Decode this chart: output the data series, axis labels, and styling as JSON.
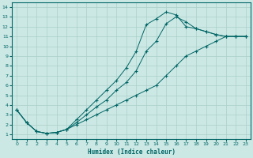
{
  "background_color": "#cce8e4",
  "line_color": "#006666",
  "grid_color": "#aacfca",
  "xlabel": "Humidex (Indice chaleur)",
  "xlim": [
    -0.5,
    23.5
  ],
  "ylim": [
    0.5,
    14.5
  ],
  "xticks": [
    0,
    1,
    2,
    3,
    4,
    5,
    6,
    7,
    8,
    9,
    10,
    11,
    12,
    13,
    14,
    15,
    16,
    17,
    18,
    19,
    20,
    21,
    22,
    23
  ],
  "yticks": [
    1,
    2,
    3,
    4,
    5,
    6,
    7,
    8,
    9,
    10,
    11,
    12,
    13,
    14
  ],
  "line1_x": [
    0,
    1,
    2,
    3,
    4,
    5,
    6,
    7,
    8,
    9,
    10,
    11,
    12,
    13,
    14,
    15,
    16,
    17,
    18,
    19,
    20,
    21,
    22,
    23
  ],
  "line1_y": [
    3.5,
    2.2,
    1.3,
    1.1,
    1.2,
    1.5,
    2.0,
    2.5,
    3.0,
    3.5,
    4.0,
    4.5,
    5.0,
    5.5,
    6.0,
    7.0,
    8.0,
    9.0,
    9.5,
    10.0,
    10.5,
    11.0,
    11.0,
    11.0
  ],
  "line2_x": [
    0,
    1,
    2,
    3,
    4,
    5,
    6,
    7,
    8,
    9,
    10,
    11,
    12,
    13,
    14,
    15,
    16,
    17,
    18,
    19,
    20,
    21,
    22,
    23
  ],
  "line2_y": [
    3.5,
    2.2,
    1.3,
    1.1,
    1.2,
    1.5,
    2.2,
    3.0,
    3.8,
    4.5,
    5.5,
    6.3,
    7.5,
    9.5,
    10.5,
    12.3,
    13.0,
    12.5,
    11.8,
    11.5,
    11.2,
    11.0,
    11.0,
    11.0
  ],
  "line3_x": [
    0,
    1,
    2,
    3,
    4,
    5,
    6,
    7,
    8,
    9,
    10,
    11,
    12,
    13,
    14,
    15,
    16,
    17,
    18,
    19,
    20,
    21,
    22,
    23
  ],
  "line3_y": [
    3.5,
    2.2,
    1.3,
    1.1,
    1.2,
    1.5,
    2.5,
    3.5,
    4.5,
    5.5,
    6.5,
    7.8,
    9.5,
    12.2,
    12.8,
    13.5,
    13.2,
    12.0,
    11.8,
    11.5,
    11.2,
    11.0,
    11.0,
    11.0
  ]
}
